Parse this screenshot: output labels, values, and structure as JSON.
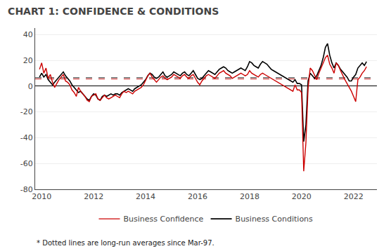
{
  "chart_data": {
    "type": "line",
    "title": "CHART 1: CONFIDENCE & CONDITIONS",
    "footnote": "* Dotted lines are long-run averages since Mar-97.",
    "x": [
      2009.917,
      2010.0,
      2010.083,
      2010.167,
      2010.25,
      2010.333,
      2010.417,
      2010.5,
      2010.583,
      2010.667,
      2010.75,
      2010.833,
      2010.917,
      2011.0,
      2011.083,
      2011.167,
      2011.25,
      2011.333,
      2011.417,
      2011.5,
      2011.583,
      2011.667,
      2011.75,
      2011.833,
      2011.917,
      2012.0,
      2012.083,
      2012.167,
      2012.25,
      2012.333,
      2012.417,
      2012.5,
      2012.583,
      2012.667,
      2012.75,
      2012.833,
      2012.917,
      2013.0,
      2013.083,
      2013.167,
      2013.25,
      2013.333,
      2013.417,
      2013.5,
      2013.583,
      2013.667,
      2013.75,
      2013.833,
      2013.917,
      2014.0,
      2014.083,
      2014.167,
      2014.25,
      2014.333,
      2014.417,
      2014.5,
      2014.583,
      2014.667,
      2014.75,
      2014.833,
      2014.917,
      2015.0,
      2015.083,
      2015.167,
      2015.25,
      2015.333,
      2015.417,
      2015.5,
      2015.583,
      2015.667,
      2015.75,
      2015.833,
      2015.917,
      2016.0,
      2016.083,
      2016.167,
      2016.25,
      2016.333,
      2016.417,
      2016.5,
      2016.583,
      2016.667,
      2016.75,
      2016.833,
      2016.917,
      2017.0,
      2017.083,
      2017.167,
      2017.25,
      2017.333,
      2017.417,
      2017.5,
      2017.583,
      2017.667,
      2017.75,
      2017.833,
      2017.917,
      2018.0,
      2018.083,
      2018.167,
      2018.25,
      2018.333,
      2018.417,
      2018.5,
      2018.583,
      2018.667,
      2018.75,
      2018.833,
      2018.917,
      2019.0,
      2019.083,
      2019.167,
      2019.25,
      2019.333,
      2019.417,
      2019.5,
      2019.583,
      2019.667,
      2019.75,
      2019.833,
      2019.917,
      2020.0,
      2020.083,
      2020.167,
      2020.25,
      2020.333,
      2020.417,
      2020.5,
      2020.583,
      2020.667,
      2020.75,
      2020.833,
      2020.917,
      2021.0,
      2021.083,
      2021.167,
      2021.25,
      2021.333,
      2021.417,
      2021.5,
      2021.583,
      2021.667,
      2021.75,
      2021.833,
      2021.917,
      2022.0,
      2022.083,
      2022.167,
      2022.25,
      2022.333,
      2022.417,
      2022.5
    ],
    "series": [
      {
        "name": "Business Confidence",
        "color": "#cc0000",
        "average": 5.5,
        "values": [
          13,
          18,
          10,
          14,
          6,
          9,
          3,
          -1,
          2,
          5,
          7,
          9,
          4,
          3,
          1,
          -3,
          -5,
          -8,
          -1,
          -4,
          -6,
          -8,
          -11,
          -12,
          -8,
          -7,
          -6,
          -10,
          -11,
          -9,
          -7,
          -9,
          -10,
          -9,
          -8,
          -7,
          -8,
          -9,
          -6,
          -4,
          -5,
          -4,
          -5,
          -6,
          -4,
          -3,
          -2,
          -1,
          1,
          5,
          8,
          10,
          7,
          5,
          3,
          5,
          7,
          8,
          6,
          5,
          6,
          7,
          9,
          8,
          7,
          6,
          8,
          9,
          7,
          6,
          8,
          9,
          6,
          3,
          1,
          4,
          6,
          8,
          9,
          8,
          7,
          6,
          8,
          10,
          11,
          12,
          10,
          9,
          8,
          6,
          7,
          8,
          9,
          10,
          9,
          8,
          9,
          12,
          10,
          9,
          8,
          7,
          9,
          10,
          9,
          8,
          7,
          6,
          5,
          4,
          3,
          2,
          1,
          0,
          -1,
          -2,
          -3,
          -4,
          1,
          -3,
          -3,
          -5,
          -66,
          -44,
          -2,
          14,
          12,
          8,
          5,
          10,
          14,
          18,
          22,
          24,
          17,
          14,
          10,
          18,
          16,
          12,
          8,
          5,
          2,
          -1,
          -4,
          -8,
          -12,
          5,
          7,
          10,
          12,
          15
        ]
      },
      {
        "name": "Business Conditions",
        "color": "#000000",
        "average": 6.5,
        "values": [
          7,
          10,
          7,
          9,
          5,
          3,
          1,
          3,
          5,
          7,
          9,
          11,
          8,
          6,
          4,
          1,
          -1,
          -3,
          -5,
          -4,
          -6,
          -8,
          -10,
          -11,
          -8,
          -6,
          -7,
          -10,
          -11,
          -8,
          -7,
          -8,
          -7,
          -6,
          -7,
          -6,
          -6,
          -7,
          -5,
          -4,
          -3,
          -2,
          -3,
          -4,
          -2,
          -1,
          0,
          1,
          3,
          5,
          8,
          10,
          9,
          7,
          6,
          7,
          9,
          11,
          8,
          7,
          8,
          9,
          11,
          10,
          9,
          8,
          10,
          11,
          9,
          8,
          10,
          12,
          9,
          6,
          5,
          6,
          8,
          10,
          12,
          11,
          10,
          9,
          11,
          13,
          14,
          15,
          14,
          12,
          11,
          10,
          11,
          12,
          13,
          14,
          13,
          12,
          15,
          19,
          18,
          16,
          15,
          14,
          17,
          19,
          18,
          17,
          15,
          13,
          12,
          11,
          10,
          9,
          8,
          7,
          6,
          5,
          4,
          3,
          5,
          2,
          2,
          1,
          -43,
          -30,
          4,
          10,
          8,
          6,
          8,
          12,
          16,
          22,
          30,
          33,
          24,
          18,
          14,
          18,
          16,
          13,
          11,
          9,
          7,
          4,
          4,
          7,
          9,
          14,
          16,
          18,
          16,
          19
        ]
      }
    ],
    "xlim": [
      2009.75,
      2022.9
    ],
    "xticks": [
      2010,
      2012,
      2014,
      2016,
      2018,
      2020,
      2022
    ],
    "ylim": [
      -80,
      45
    ],
    "yticks": [
      -80,
      -60,
      -40,
      -20,
      0,
      20,
      40
    ],
    "grid": "y",
    "legend": "bottom"
  }
}
